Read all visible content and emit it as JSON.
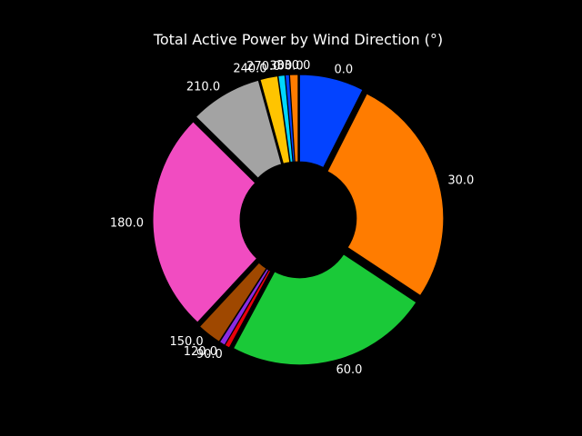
{
  "chart_data": {
    "type": "pie",
    "variant": "donut",
    "title": "Total Active Power by Wind Direction (°)",
    "start_angle_deg": 90,
    "direction": "clockwise",
    "legend": "none",
    "categories": [
      "0.0",
      "30.0",
      "60.0",
      "90.0",
      "120.0",
      "150.0",
      "180.0",
      "210.0",
      "240.0",
      "270.0",
      "300.0",
      "330.0"
    ],
    "values": [
      7.7,
      27.7,
      24.3,
      0.6,
      0.7,
      2.9,
      26.3,
      8.6,
      2.1,
      0.8,
      0.5,
      1.0
    ],
    "colors": [
      "#0343ff",
      "#ff7c00",
      "#1ac938",
      "#e8000b",
      "#8b2be2",
      "#9f4800",
      "#f14cc1",
      "#a3a3a3",
      "#ffc400",
      "#00d7ff",
      "#0343ff",
      "#ff7c00"
    ],
    "background": "#000000",
    "text_color": "#ffffff",
    "edge_color": "#000000"
  }
}
